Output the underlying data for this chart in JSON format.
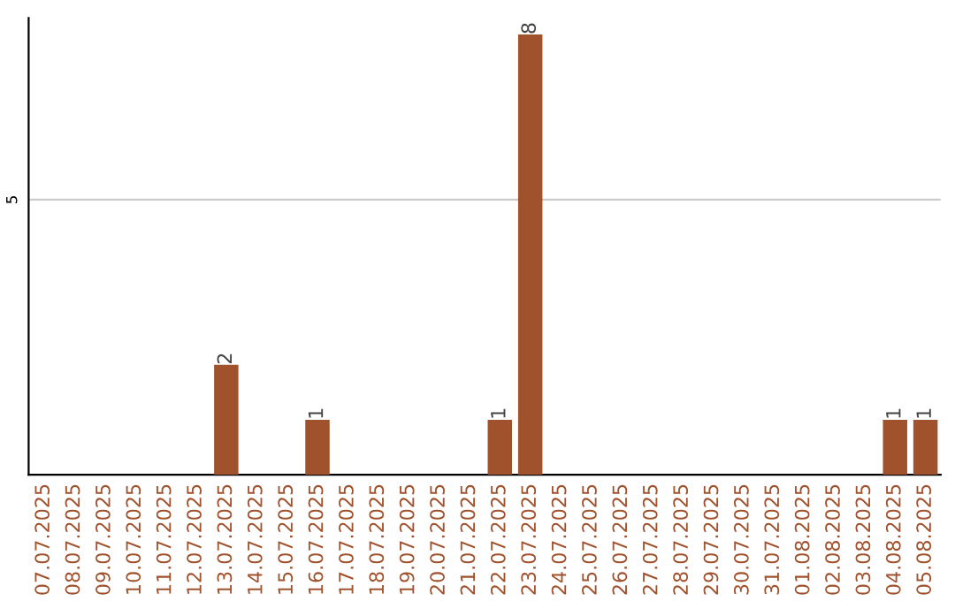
{
  "chart_data": {
    "type": "bar",
    "categories": [
      "07.07.2025",
      "08.07.2025",
      "09.07.2025",
      "10.07.2025",
      "11.07.2025",
      "12.07.2025",
      "13.07.2025",
      "14.07.2025",
      "15.07.2025",
      "16.07.2025",
      "17.07.2025",
      "18.07.2025",
      "19.07.2025",
      "20.07.2025",
      "21.07.2025",
      "22.07.2025",
      "23.07.2025",
      "24.07.2025",
      "25.07.2025",
      "26.07.2025",
      "27.07.2025",
      "28.07.2025",
      "29.07.2025",
      "30.07.2025",
      "31.07.2025",
      "01.08.2025",
      "02.08.2025",
      "03.08.2025",
      "04.08.2025",
      "05.08.2025"
    ],
    "values": [
      0,
      0,
      0,
      0,
      0,
      0,
      2,
      0,
      0,
      1,
      0,
      0,
      0,
      0,
      0,
      1,
      8,
      0,
      0,
      0,
      0,
      0,
      0,
      0,
      0,
      0,
      0,
      0,
      1,
      1
    ],
    "value_labels": [
      null,
      null,
      null,
      null,
      null,
      null,
      "2",
      null,
      null,
      "1",
      null,
      null,
      null,
      null,
      null,
      "1",
      "8",
      null,
      null,
      null,
      null,
      null,
      null,
      null,
      null,
      null,
      null,
      null,
      "1",
      "1"
    ],
    "color": "#a0522d",
    "ylim": [
      0,
      8.3
    ],
    "yticks": [
      5
    ],
    "grid": "y"
  }
}
